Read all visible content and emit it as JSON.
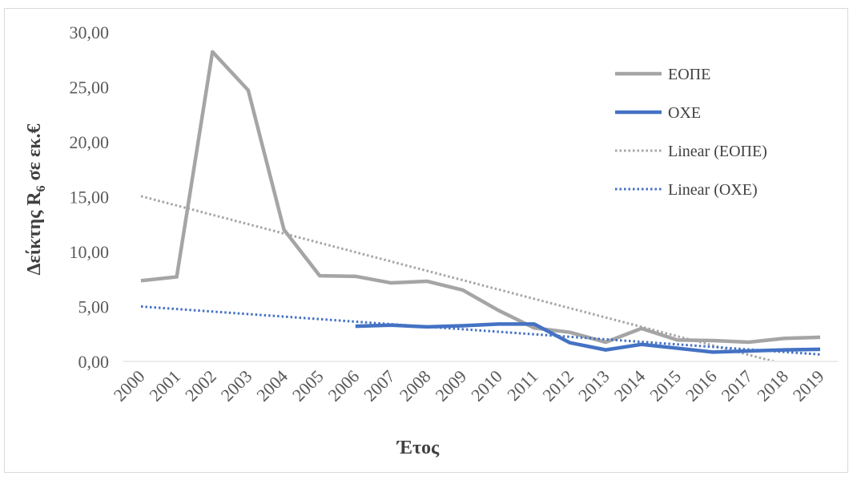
{
  "chart_data": {
    "type": "line",
    "title": "",
    "xlabel": "Έτος",
    "ylabel": "Δείκτης R",
    "ylabel_subscript": "6",
    "ylabel_suffix": " σε εκ.€",
    "ylim": [
      0,
      30
    ],
    "yticks": [
      "0,00",
      "5,00",
      "10,00",
      "15,00",
      "20,00",
      "25,00",
      "30,00"
    ],
    "categories": [
      "2000",
      "2001",
      "2002",
      "2003",
      "2004",
      "2005",
      "2006",
      "2007",
      "2008",
      "2009",
      "2010",
      "2011",
      "2012",
      "2013",
      "2014",
      "2015",
      "2016",
      "2017",
      "2018",
      "2019"
    ],
    "series": [
      {
        "name": "ΕΟΠΕ",
        "color": "#a5a5a5",
        "style": "solid",
        "values": [
          7.35,
          7.7,
          28.2,
          24.7,
          12.0,
          7.8,
          7.75,
          7.15,
          7.3,
          6.5,
          4.65,
          3.05,
          2.65,
          1.75,
          3.0,
          1.95,
          1.9,
          1.75,
          2.1,
          2.2
        ]
      },
      {
        "name": "ΟΧΕ",
        "color": "#4472c4",
        "style": "solid",
        "values": [
          null,
          null,
          null,
          null,
          null,
          null,
          3.2,
          3.3,
          3.15,
          3.25,
          3.4,
          3.4,
          1.7,
          1.05,
          1.55,
          1.2,
          0.85,
          0.95,
          1.05,
          1.1
        ]
      },
      {
        "name": "Linear (ΕΟΠΕ)",
        "color": "#a5a5a5",
        "style": "dotted",
        "trend_of": "ΕΟΠΕ",
        "values": [
          15.05,
          14.2,
          13.35,
          12.5,
          11.65,
          10.8,
          9.95,
          9.1,
          8.25,
          7.4,
          6.55,
          5.7,
          4.85,
          4.0,
          3.15,
          2.3,
          1.45,
          0.6,
          -0.25,
          -1.1
        ]
      },
      {
        "name": "Linear (ΟΧΕ)",
        "color": "#4472c4",
        "style": "dotted",
        "trend_of": "ΟΧΕ",
        "values": [
          5.0,
          4.77,
          4.54,
          4.31,
          4.08,
          3.85,
          3.62,
          3.39,
          3.16,
          2.93,
          2.7,
          2.47,
          2.24,
          2.01,
          1.78,
          1.55,
          1.32,
          1.09,
          0.86,
          0.63
        ]
      }
    ],
    "grid": false,
    "legend_position": "top-right"
  }
}
